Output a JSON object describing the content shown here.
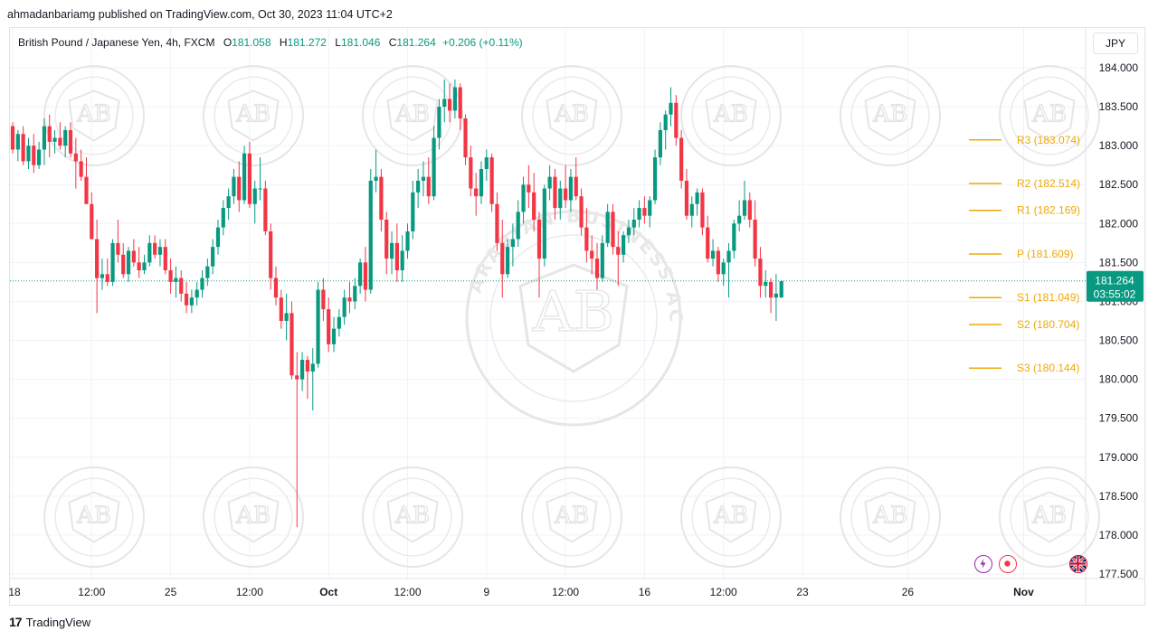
{
  "publisher_line": "ahmadanbariamg published on TradingView.com, Oct 30, 2023 11:04 UTC+2",
  "legend": {
    "symbol": "British Pound / Japanese Yen, 4h, FXCM",
    "o_label": "O",
    "o": "181.058",
    "h_label": "H",
    "h": "181.272",
    "l_label": "L",
    "l": "181.046",
    "c_label": "C",
    "c": "181.264",
    "change": "+0.206 (+0.11%)"
  },
  "currency_button": "JPY",
  "price_tag": {
    "price": "181.264",
    "countdown": "03:55:02"
  },
  "footer": {
    "logo": "17",
    "brand": "TradingView"
  },
  "watermark": {
    "monogram": "AB",
    "ring_text": "ARABIAN BUSINESS ACADEMY"
  },
  "colors": {
    "up": "#089981",
    "down": "#f23645",
    "pivot": "#f0a80a",
    "price_line": "#089981",
    "grid": "#f0f3fa"
  },
  "icons": [
    "lightning-icon",
    "record-icon",
    "uk-flag-icon"
  ],
  "chart_data": {
    "type": "candlestick",
    "interval": "4h",
    "y_axis": {
      "ylim": [
        177.45,
        184.15
      ],
      "ticks": [
        "184.000",
        "183.500",
        "183.000",
        "182.500",
        "182.000",
        "181.500",
        "181.000",
        "180.500",
        "180.000",
        "179.500",
        "179.000",
        "178.500",
        "178.000",
        "177.500"
      ],
      "tick_values": [
        184.0,
        183.5,
        183.0,
        182.5,
        182.0,
        181.5,
        181.0,
        180.5,
        180.0,
        179.5,
        179.0,
        178.5,
        178.0,
        177.5
      ]
    },
    "x_axis": {
      "labels": [
        "18",
        "12:00",
        "25",
        "12:00",
        "Oct",
        "12:00",
        "9",
        "12:00",
        "16",
        "12:00",
        "23",
        "26",
        "Nov"
      ],
      "label_bars": [
        0,
        15,
        30,
        45,
        60,
        75,
        90,
        105,
        120,
        135,
        150,
        170,
        192
      ]
    },
    "candles": [
      [
        183.25,
        183.3,
        182.9,
        182.95
      ],
      [
        182.95,
        183.2,
        182.8,
        183.15
      ],
      [
        183.15,
        183.25,
        182.75,
        182.8
      ],
      [
        182.8,
        183.1,
        182.7,
        183.0
      ],
      [
        183.0,
        183.15,
        182.65,
        182.75
      ],
      [
        182.75,
        183.05,
        182.7,
        182.95
      ],
      [
        182.95,
        183.35,
        182.75,
        183.25
      ],
      [
        183.25,
        183.4,
        182.85,
        183.05
      ],
      [
        183.05,
        183.2,
        182.9,
        183.1
      ],
      [
        183.1,
        183.3,
        182.95,
        183.0
      ],
      [
        183.0,
        183.25,
        182.85,
        183.2
      ],
      [
        183.2,
        183.3,
        182.85,
        182.9
      ],
      [
        182.9,
        183.1,
        182.45,
        182.8
      ],
      [
        182.8,
        182.95,
        182.55,
        182.6
      ],
      [
        182.6,
        182.85,
        182.3,
        182.25
      ],
      [
        182.25,
        182.4,
        181.8,
        181.8
      ],
      [
        181.8,
        182.05,
        180.85,
        181.3
      ],
      [
        181.3,
        181.55,
        181.15,
        181.35
      ],
      [
        181.35,
        181.55,
        181.2,
        181.25
      ],
      [
        181.25,
        181.8,
        181.2,
        181.75
      ],
      [
        181.75,
        182.05,
        181.5,
        181.6
      ],
      [
        181.6,
        181.75,
        181.3,
        181.35
      ],
      [
        181.35,
        181.7,
        181.25,
        181.65
      ],
      [
        181.65,
        181.8,
        181.45,
        181.5
      ],
      [
        181.5,
        181.7,
        181.3,
        181.4
      ],
      [
        181.4,
        181.6,
        181.35,
        181.5
      ],
      [
        181.5,
        181.85,
        181.45,
        181.75
      ],
      [
        181.75,
        181.85,
        181.55,
        181.6
      ],
      [
        181.6,
        181.8,
        181.45,
        181.7
      ],
      [
        181.7,
        181.8,
        181.35,
        181.4
      ],
      [
        181.4,
        181.55,
        181.1,
        181.25
      ],
      [
        181.25,
        181.45,
        181.05,
        181.3
      ],
      [
        181.3,
        181.4,
        181.0,
        181.1
      ],
      [
        181.1,
        181.25,
        180.85,
        180.95
      ],
      [
        180.95,
        181.15,
        180.85,
        181.05
      ],
      [
        181.05,
        181.25,
        180.95,
        181.15
      ],
      [
        181.15,
        181.4,
        181.05,
        181.3
      ],
      [
        181.3,
        181.55,
        181.2,
        181.45
      ],
      [
        181.45,
        181.8,
        181.35,
        181.7
      ],
      [
        181.7,
        182.05,
        181.6,
        181.95
      ],
      [
        181.95,
        182.3,
        181.85,
        182.2
      ],
      [
        182.2,
        182.45,
        182.05,
        182.35
      ],
      [
        182.35,
        182.7,
        182.25,
        182.6
      ],
      [
        182.6,
        182.8,
        182.15,
        182.3
      ],
      [
        182.3,
        183.0,
        182.25,
        182.9
      ],
      [
        182.9,
        183.05,
        182.2,
        182.25
      ],
      [
        182.25,
        182.55,
        182.0,
        182.45
      ],
      [
        182.45,
        182.85,
        182.3,
        182.45
      ],
      [
        182.45,
        182.55,
        181.85,
        181.9
      ],
      [
        181.9,
        182.0,
        181.15,
        181.3
      ],
      [
        181.3,
        181.45,
        180.95,
        181.05
      ],
      [
        181.05,
        181.15,
        180.65,
        180.75
      ],
      [
        180.75,
        181.1,
        180.5,
        180.85
      ],
      [
        180.85,
        181.0,
        180.0,
        180.05
      ],
      [
        180.05,
        180.35,
        178.1,
        180.0
      ],
      [
        180.0,
        180.35,
        179.85,
        180.25
      ],
      [
        180.25,
        180.3,
        179.75,
        180.1
      ],
      [
        180.1,
        180.4,
        179.6,
        180.2
      ],
      [
        180.2,
        181.25,
        180.15,
        181.15
      ],
      [
        181.15,
        181.3,
        180.75,
        180.9
      ],
      [
        180.9,
        181.05,
        180.35,
        180.45
      ],
      [
        180.45,
        180.8,
        180.35,
        180.65
      ],
      [
        180.65,
        180.9,
        180.55,
        180.8
      ],
      [
        180.8,
        181.15,
        180.7,
        181.05
      ],
      [
        181.05,
        181.25,
        180.85,
        181.0
      ],
      [
        181.0,
        181.3,
        180.9,
        181.2
      ],
      [
        181.2,
        181.55,
        181.1,
        181.5
      ],
      [
        181.5,
        181.7,
        181.0,
        181.15
      ],
      [
        181.15,
        182.7,
        181.1,
        182.55
      ],
      [
        182.55,
        182.95,
        182.4,
        182.6
      ],
      [
        182.6,
        182.7,
        181.9,
        182.05
      ],
      [
        182.05,
        182.15,
        181.35,
        181.55
      ],
      [
        181.55,
        181.9,
        181.35,
        181.75
      ],
      [
        181.75,
        182.0,
        181.25,
        181.4
      ],
      [
        181.4,
        181.85,
        181.25,
        181.65
      ],
      [
        181.65,
        182.0,
        181.55,
        181.9
      ],
      [
        181.9,
        182.55,
        181.8,
        182.4
      ],
      [
        182.4,
        182.7,
        182.2,
        182.55
      ],
      [
        182.55,
        182.8,
        182.35,
        182.6
      ],
      [
        182.6,
        182.85,
        182.25,
        182.35
      ],
      [
        182.35,
        183.25,
        182.3,
        183.1
      ],
      [
        183.1,
        183.6,
        182.95,
        183.5
      ],
      [
        183.5,
        183.85,
        183.3,
        183.6
      ],
      [
        183.6,
        183.8,
        183.3,
        183.45
      ],
      [
        183.45,
        183.85,
        183.35,
        183.75
      ],
      [
        183.75,
        183.8,
        183.2,
        183.35
      ],
      [
        183.35,
        183.4,
        182.75,
        182.85
      ],
      [
        182.85,
        183.0,
        182.35,
        182.45
      ],
      [
        182.45,
        182.65,
        182.1,
        182.35
      ],
      [
        182.35,
        182.8,
        182.25,
        182.7
      ],
      [
        182.7,
        182.95,
        182.55,
        182.85
      ],
      [
        182.85,
        182.9,
        182.15,
        182.25
      ],
      [
        182.25,
        182.4,
        181.65,
        181.75
      ],
      [
        181.75,
        182.05,
        181.05,
        181.35
      ],
      [
        181.35,
        181.8,
        181.3,
        181.7
      ],
      [
        181.7,
        182.0,
        181.45,
        181.8
      ],
      [
        181.8,
        182.3,
        181.7,
        182.15
      ],
      [
        182.15,
        182.6,
        182.0,
        182.5
      ],
      [
        182.5,
        182.75,
        182.2,
        182.4
      ],
      [
        182.4,
        182.65,
        181.9,
        182.05
      ],
      [
        182.05,
        182.15,
        181.05,
        181.55
      ],
      [
        181.55,
        182.5,
        181.45,
        182.45
      ],
      [
        182.45,
        182.75,
        182.3,
        182.6
      ],
      [
        182.6,
        182.7,
        182.05,
        182.2
      ],
      [
        182.2,
        182.55,
        182.05,
        182.45
      ],
      [
        182.45,
        182.75,
        182.2,
        182.3
      ],
      [
        182.3,
        182.7,
        182.15,
        182.6
      ],
      [
        182.6,
        182.85,
        182.3,
        182.35
      ],
      [
        182.35,
        182.45,
        181.85,
        181.95
      ],
      [
        181.95,
        182.2,
        181.5,
        181.65
      ],
      [
        181.65,
        181.85,
        181.35,
        181.55
      ],
      [
        181.55,
        181.75,
        181.15,
        181.3
      ],
      [
        181.3,
        181.85,
        181.25,
        181.75
      ],
      [
        181.75,
        182.25,
        181.7,
        182.15
      ],
      [
        182.15,
        182.25,
        181.6,
        181.7
      ],
      [
        181.7,
        181.9,
        181.2,
        181.6
      ],
      [
        181.6,
        181.9,
        181.5,
        181.85
      ],
      [
        181.85,
        182.05,
        181.75,
        181.95
      ],
      [
        181.95,
        182.2,
        181.85,
        182.05
      ],
      [
        182.05,
        182.3,
        181.95,
        182.2
      ],
      [
        182.2,
        182.35,
        182.0,
        182.1
      ],
      [
        182.1,
        182.35,
        181.95,
        182.3
      ],
      [
        182.3,
        182.95,
        182.25,
        182.85
      ],
      [
        182.85,
        183.3,
        182.75,
        183.2
      ],
      [
        183.2,
        183.45,
        182.95,
        183.4
      ],
      [
        183.4,
        183.75,
        183.25,
        183.55
      ],
      [
        183.55,
        183.65,
        183.0,
        183.1
      ],
      [
        183.1,
        183.2,
        182.45,
        182.55
      ],
      [
        182.55,
        182.7,
        182.05,
        182.1
      ],
      [
        182.1,
        182.35,
        181.95,
        182.25
      ],
      [
        182.25,
        182.45,
        182.1,
        182.4
      ],
      [
        182.4,
        182.45,
        181.85,
        181.95
      ],
      [
        181.95,
        182.1,
        181.5,
        181.55
      ],
      [
        181.55,
        181.8,
        181.45,
        181.65
      ],
      [
        181.65,
        181.7,
        181.25,
        181.35
      ],
      [
        181.35,
        181.55,
        181.2,
        181.5
      ],
      [
        181.5,
        181.75,
        181.05,
        181.65
      ],
      [
        181.65,
        182.05,
        181.55,
        182.0
      ],
      [
        182.0,
        182.3,
        181.9,
        182.1
      ],
      [
        182.1,
        182.55,
        182.05,
        182.3
      ],
      [
        182.3,
        182.4,
        181.95,
        182.05
      ],
      [
        182.05,
        182.3,
        181.45,
        181.55
      ],
      [
        181.55,
        181.7,
        181.05,
        181.2
      ],
      [
        181.2,
        181.4,
        181.05,
        181.25
      ],
      [
        181.25,
        181.3,
        180.85,
        181.05
      ],
      [
        181.05,
        181.35,
        180.75,
        181.1
      ],
      [
        181.05,
        181.27,
        181.05,
        181.26
      ]
    ],
    "pivot_levels": [
      {
        "label": "R3 (183.074)",
        "value": 183.074
      },
      {
        "label": "R2 (182.514)",
        "value": 182.514
      },
      {
        "label": "R1 (182.169)",
        "value": 182.169
      },
      {
        "label": "P (181.609)",
        "value": 181.609
      },
      {
        "label": "S1 (181.049)",
        "value": 181.049
      },
      {
        "label": "S2 (180.704)",
        "value": 180.704
      },
      {
        "label": "S3 (180.144)",
        "value": 180.144
      }
    ],
    "last_price": 181.264,
    "grid": true
  }
}
